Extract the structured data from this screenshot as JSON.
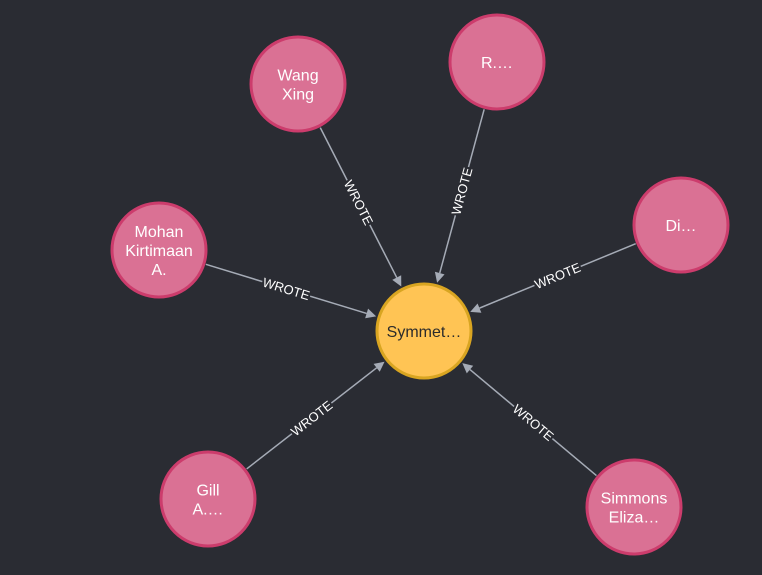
{
  "colors": {
    "background": "#2a2c33",
    "author_fill": "#da7194",
    "author_stroke": "#cc3c6c",
    "paper_fill": "#ffc454",
    "paper_stroke": "#d9a521",
    "edge": "#a5abb6"
  },
  "graph": {
    "center": {
      "id": "paper",
      "type": "paper",
      "lines": [
        "Symmet…"
      ]
    },
    "authors": [
      {
        "id": "wang-xing",
        "lines": [
          "Wang",
          "Xing"
        ]
      },
      {
        "id": "r",
        "lines": [
          "R.…"
        ]
      },
      {
        "id": "di",
        "lines": [
          "Di…"
        ]
      },
      {
        "id": "mohan",
        "lines": [
          "Mohan",
          "Kirtimaan",
          "A."
        ]
      },
      {
        "id": "gill",
        "lines": [
          "Gill",
          "A.…"
        ]
      },
      {
        "id": "simmons",
        "lines": [
          "Simmons",
          "Eliza…"
        ]
      }
    ],
    "edge_label": "WROTE"
  }
}
